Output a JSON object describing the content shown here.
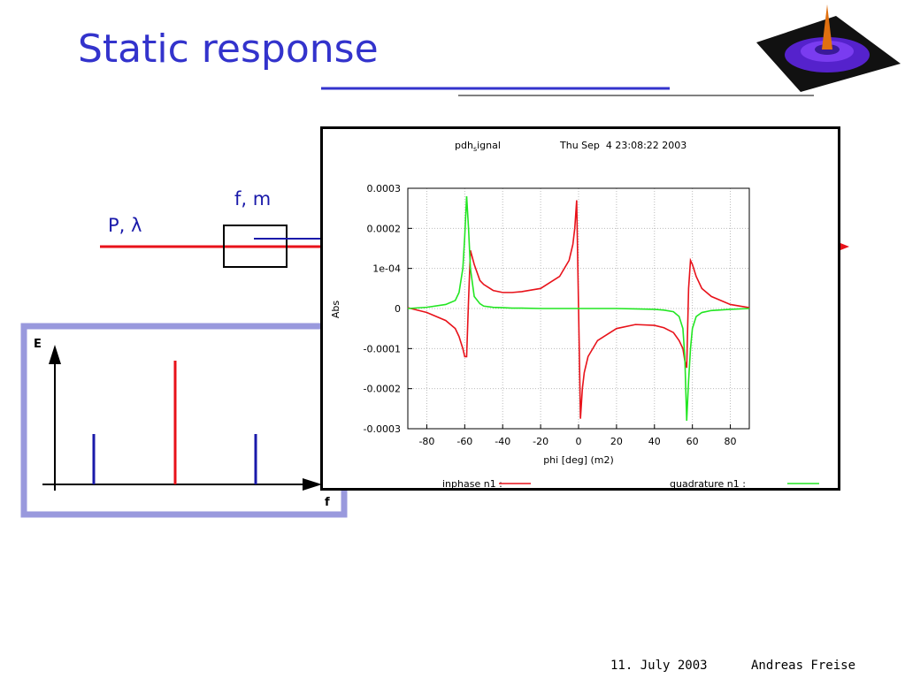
{
  "slide_title": "Static response",
  "diagram": {
    "beam_label": "P, λ",
    "modulator_label": "f, m"
  },
  "spectrum": {
    "y_label": "E",
    "x_label": "f"
  },
  "chart_data": {
    "type": "line",
    "title_parts": [
      "pdh",
      "s",
      "ignal"
    ],
    "date": "Thu Sep  4 23:08:22 2003",
    "x_label": "phi [deg] (m2)",
    "y_label": "Abs",
    "x": [
      -90,
      -80,
      -70,
      -65,
      -63,
      -61,
      -60,
      -59,
      -58,
      -57,
      -55,
      -52,
      -50,
      -45,
      -40,
      -35,
      -30,
      -20,
      -10,
      -5,
      -3,
      -2,
      -1,
      0,
      1,
      2,
      3,
      5,
      10,
      20,
      30,
      40,
      45,
      50,
      53,
      55,
      56,
      57,
      58,
      59,
      60,
      62,
      65,
      70,
      80,
      90
    ],
    "series": [
      {
        "name": "inphase n1 :",
        "color": "#e8121a",
        "values": [
          2e-06,
          -1e-05,
          -3e-05,
          -5e-05,
          -7e-05,
          -0.0001,
          -0.00012,
          -0.00012,
          2e-05,
          0.000145,
          0.00011,
          7e-05,
          6e-05,
          4.5e-05,
          4e-05,
          4e-05,
          4.2e-05,
          5e-05,
          8e-05,
          0.00012,
          0.00016,
          0.0002,
          0.00027,
          0,
          -0.000275,
          -0.0002,
          -0.00016,
          -0.00012,
          -8e-05,
          -5e-05,
          -4e-05,
          -4.2e-05,
          -4.8e-05,
          -6e-05,
          -8e-05,
          -0.0001,
          -0.00013,
          -0.000148,
          5e-05,
          0.00012,
          0.00011,
          8e-05,
          5e-05,
          3e-05,
          1e-05,
          2e-06
        ]
      },
      {
        "name": "quadrature n1 :",
        "color": "#22e622",
        "values": [
          0,
          3e-06,
          1e-05,
          2e-05,
          4e-05,
          0.0001,
          0.00018,
          0.00028,
          0.0002,
          0.0001,
          3e-05,
          1.2e-05,
          6e-06,
          3e-06,
          2e-06,
          1e-06,
          1e-06,
          0,
          0,
          0,
          0,
          0,
          0,
          0,
          0,
          0,
          0,
          0,
          0,
          0,
          -1e-06,
          -2e-06,
          -4e-06,
          -8e-06,
          -2e-05,
          -5e-05,
          -0.00012,
          -0.00028,
          -0.00018,
          -0.0001,
          -5e-05,
          -2e-05,
          -1e-05,
          -5e-06,
          -2e-06,
          0
        ]
      }
    ],
    "xlim": [
      -90,
      90
    ],
    "xticks": [
      -80,
      -60,
      -40,
      -20,
      0,
      20,
      40,
      60,
      80
    ],
    "ylim": [
      -0.0003,
      0.0003
    ],
    "yticks": [
      0.0003,
      0.0002,
      {
        "value": 0.0001,
        "label": "1e-04"
      },
      0,
      -0.0001,
      -0.0002,
      -0.0003
    ],
    "grid": true
  },
  "footer": {
    "date": "11. July 2003",
    "author": "Andreas Freise"
  }
}
